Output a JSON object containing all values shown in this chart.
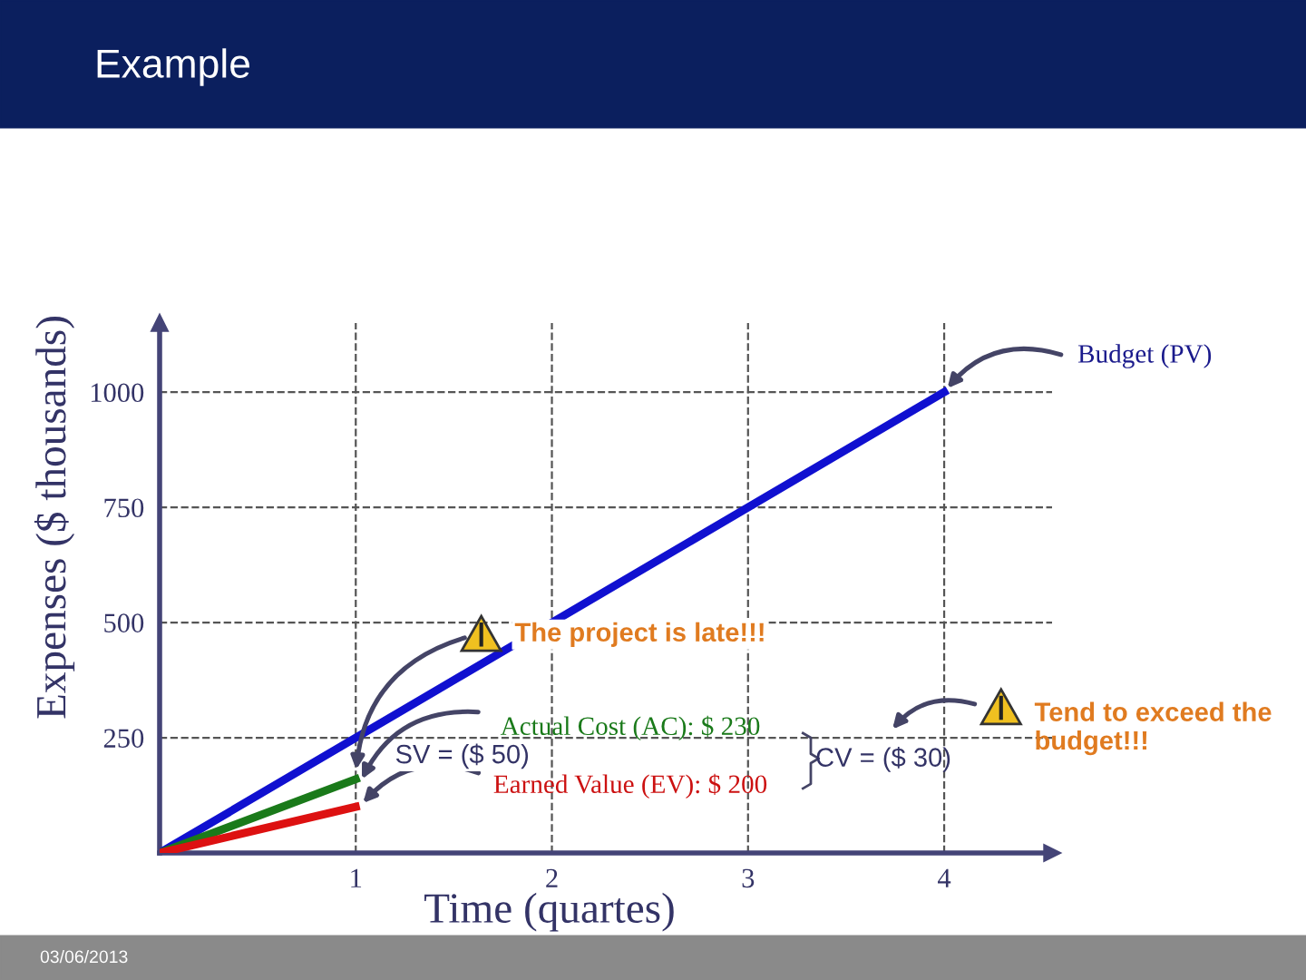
{
  "chart_data": {
    "type": "line",
    "title": "Example",
    "xlabel": "Time (quartes)",
    "ylabel": "Expenses ($ thousands)",
    "xlim": [
      0,
      4.55
    ],
    "ylim": [
      0,
      1150
    ],
    "xticks": [
      1,
      2,
      3,
      4
    ],
    "yticks": [
      250,
      500,
      750,
      1000
    ],
    "grid": true,
    "line_style": "solid",
    "series": [
      {
        "color": "#1010d0",
        "x": [
          0,
          4
        ],
        "values": [
          0,
          1000
        ]
      },
      {
        "color": "#1a7a1a",
        "x": [
          0,
          1
        ],
        "values": [
          0,
          160
        ]
      },
      {
        "color": "#dd1111",
        "x": [
          0,
          1
        ],
        "values": [
          0,
          100
        ]
      }
    ],
    "annotations": [
      "Budget (PV)",
      "The project is late!!!",
      "Actual Cost (AC): $ 230",
      "SV = ($ 50)",
      "Earned Value (EV): $ 200",
      "CV = ($ 30)",
      "Tend to exceed the\nbudget!!!",
      "03/06/2013"
    ]
  }
}
